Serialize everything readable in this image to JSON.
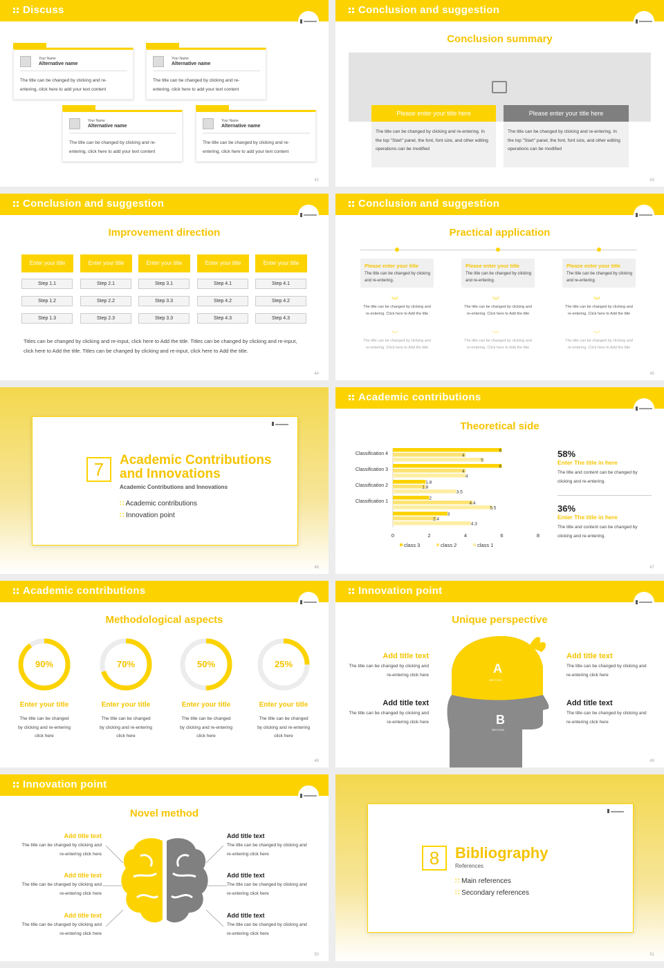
{
  "slides": {
    "s42": {
      "title": "Discuss",
      "page": "42",
      "cards": [
        {
          "name": "Your Name",
          "alt": "Alternative name",
          "text": "The title can be changed by clicking and re-entering, click here to add your text content"
        },
        {
          "name": "Your Name",
          "alt": "Alternative name",
          "text": "The title can be changed by clicking and re-entering, click here to add your text content"
        },
        {
          "name": "Your Name",
          "alt": "Alternative name",
          "text": "The title can be changed by clicking and re-entering, click here to add your text content"
        },
        {
          "name": "Your Name",
          "alt": "Alternative name",
          "text": "The title can be changed by clicking and re-entering, click here to add your text content"
        }
      ]
    },
    "s43": {
      "title": "Conclusion and suggestion",
      "subtitle": "Conclusion summary",
      "page": "43",
      "boxes": [
        {
          "label": "Please enter your title here",
          "text": "The title can be changed by clicking and re-entering. In the top \"Start\" panel, the font, font size, and other editing operations can be modified"
        },
        {
          "label": "Please enter your title here",
          "text": "The title can be changed by clicking and re-entering. In the top \"Start\" panel, the font, font size, and other editing operations can be modified"
        }
      ]
    },
    "s44": {
      "title": "Conclusion and suggestion",
      "subtitle": "Improvement direction",
      "page": "44",
      "columns": [
        {
          "head": "Enter your title",
          "steps": [
            "Step 1.1",
            "Step 1.2",
            "Step 1.3"
          ]
        },
        {
          "head": "Enter your title",
          "steps": [
            "Step 2.1",
            "Step 2.2",
            "Step 2.3"
          ]
        },
        {
          "head": "Enter your title",
          "steps": [
            "Step 3.1",
            "Step 3.3",
            "Step 3.3"
          ]
        },
        {
          "head": "Enter your title",
          "steps": [
            "Step 4.1",
            "Step 4.2",
            "Step 4.3"
          ]
        },
        {
          "head": "Enter your title",
          "steps": [
            "Step 4.1",
            "Step 4.2",
            "Step 4.3"
          ]
        }
      ],
      "note": "Titles can be changed by clicking and re-input, click here to Add the title. Titles can be changed by clicking and re-input, click here to Add the title. Titles can be changed by clicking and re-input, click here to Add the title."
    },
    "s45": {
      "title": "Conclusion and suggestion",
      "subtitle": "Practical application",
      "page": "45",
      "items": [
        {
          "label": "Please enter your title",
          "desc": "The title can be changed by clicking and re-entering.",
          "t1": "The title can be changed by clicking and re-entering. Click here to Add the title",
          "t2": "The title can be changed by clicking and re-entering. Click here to Add the title"
        },
        {
          "label": "Please enter your title",
          "desc": "The title can be changed by clicking and re-entering.",
          "t1": "The title can be changed by clicking and re-entering. Click here to Add the title",
          "t2": "The title can be changed by clicking and re-entering. Click here to Add the title"
        },
        {
          "label": "Please enter your title",
          "desc": "The title can be changed by clicking and re-entering.",
          "t1": "The title can be changed by clicking and re-entering. Click here to Add the title",
          "t2": "The title can be changed by clicking and re-entering. Click here to Add the title"
        }
      ]
    },
    "s46": {
      "number": "7",
      "title1": "Academic Contributions",
      "title2": "and Innovations",
      "subtitle": "Academic Contributions and Innovations",
      "items": [
        "Academic contributions",
        "Innovation point"
      ],
      "page": "46"
    },
    "s47": {
      "title": "Academic contributions",
      "subtitle": "Theoretical side",
      "page": "47",
      "stats": [
        {
          "pct": "58%",
          "head": "Enter The title in here",
          "text": "The title and content can be changed by clicking and re-entering."
        },
        {
          "pct": "36%",
          "head": "Enter The title in here",
          "text": "The title and content can be changed by clicking and re-entering."
        }
      ]
    },
    "s48": {
      "title": "Academic contributions",
      "subtitle": "Methodological aspects",
      "page": "48",
      "rings": [
        {
          "label": "90%",
          "value": 0.9,
          "head": "Enter your title",
          "text": "The title can be changed by clicking and re-entering click here"
        },
        {
          "label": "70%",
          "value": 0.7,
          "head": "Enter your title",
          "text": "The title can be changed by clicking and re-entering click here"
        },
        {
          "label": "50%",
          "value": 0.5,
          "head": "Enter your title",
          "text": "The title can be changed by clicking and re-entering click here"
        },
        {
          "label": "25%",
          "value": 0.25,
          "head": "Enter your title",
          "text": "The title can be changed by clicking and re-entering click here"
        }
      ]
    },
    "s49": {
      "title": "Innovation point",
      "subtitle": "Unique perspective",
      "page": "49",
      "a": "A",
      "b": "B",
      "section": "SECTION",
      "blocks": [
        {
          "head": "Add title text",
          "text": "The title can be changed by clicking and re-entering click here"
        },
        {
          "head": "Add title text",
          "text": "The title can be changed by clicking and re-entering click here"
        },
        {
          "head": "Add title text",
          "text": "The title can be changed by clicking and re-entering click here"
        },
        {
          "head": "Add title text",
          "text": "The title can be changed by clicking and re-entering click here"
        }
      ]
    },
    "s50": {
      "title": "Innovation point",
      "subtitle": "Novel method",
      "page": "50",
      "left": [
        {
          "head": "Add title text",
          "text": "The title can be changed by clicking and re-entering click here"
        },
        {
          "head": "Add title text",
          "text": "The title can be changed by clicking and re-entering click here"
        },
        {
          "head": "Add title text",
          "text": "The title can be changed by clicking and re-entering click here"
        }
      ],
      "right": [
        {
          "head": "Add title text",
          "text": "The title can be changed by clicking and re-entering click here"
        },
        {
          "head": "Add title text",
          "text": "The title can be changed by clicking and re-entering click here"
        },
        {
          "head": "Add title text",
          "text": "The title can be changed by clicking and re-entering click here"
        }
      ]
    },
    "s51": {
      "number": "8",
      "title": "Bibliography",
      "subtitle": "References",
      "items": [
        "Main references",
        "Secondary references"
      ],
      "page": "51"
    }
  },
  "chart_data": {
    "type": "bar",
    "orientation": "horizontal",
    "categories": [
      "Classification 4",
      "Classification 3",
      "Classification 2",
      "Classification 1",
      ""
    ],
    "series": [
      {
        "name": "class 3",
        "color": "#fcd300",
        "values": [
          6,
          6,
          1.8,
          2,
          3
        ]
      },
      {
        "name": "class 2",
        "color": "#fde373",
        "values": [
          4,
          4,
          1.8,
          4.4,
          2.4
        ]
      },
      {
        "name": "class 1",
        "color": "#fdeea3",
        "values": [
          5,
          4,
          3.5,
          5.5,
          4.3
        ]
      }
    ],
    "xlim": [
      0,
      8
    ],
    "xticks": [
      "0",
      "2",
      "4",
      "6",
      "8"
    ],
    "legend": "bottom"
  },
  "colors": {
    "accent": "#fcd300",
    "gray": "#8a8a8a"
  }
}
